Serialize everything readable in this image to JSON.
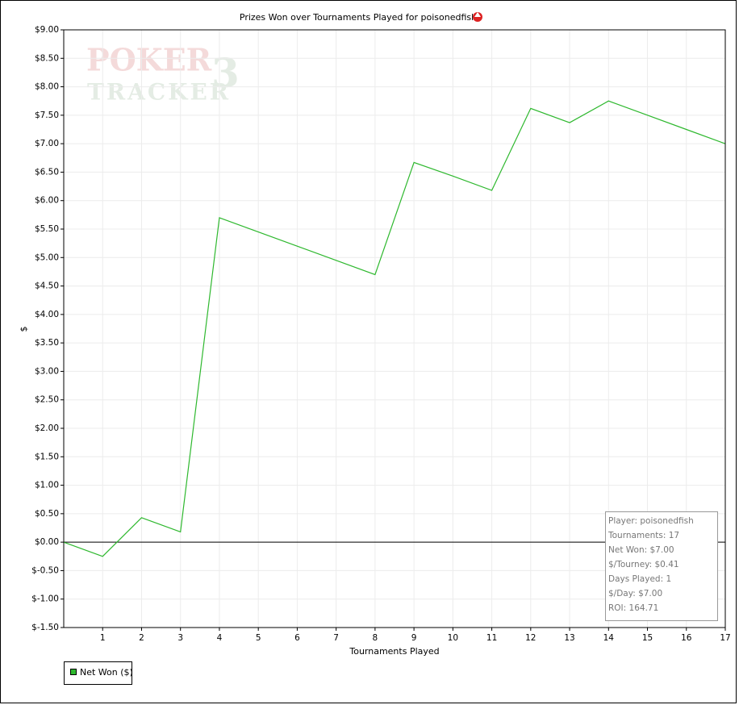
{
  "chart_data": {
    "type": "line",
    "title": "Prizes Won over Tournaments Played for poisonedfish",
    "watermark": [
      "POKER",
      "TRACKER",
      "3"
    ],
    "x_label": "Tournaments Played",
    "y_label": "$",
    "x": [
      0,
      1,
      2,
      3,
      4,
      5,
      6,
      7,
      8,
      9,
      10,
      11,
      12,
      13,
      14,
      15,
      16,
      17
    ],
    "series": [
      {
        "name": "Net Won ($)",
        "color": "#2eb82e",
        "values": [
          0.0,
          -0.25,
          0.43,
          0.18,
          5.7,
          5.45,
          5.2,
          4.95,
          4.7,
          6.67,
          6.43,
          6.18,
          7.62,
          7.37,
          7.75,
          7.5,
          7.25,
          7.0
        ]
      }
    ],
    "xlim": [
      0,
      17
    ],
    "xticks": [
      1,
      2,
      3,
      4,
      5,
      6,
      7,
      8,
      9,
      10,
      11,
      12,
      13,
      14,
      15,
      16,
      17
    ],
    "ylim": [
      -1.5,
      9
    ],
    "yticks": [
      {
        "value": 9,
        "label": "$9.00"
      },
      {
        "value": 8.5,
        "label": "$8.50"
      },
      {
        "value": 8,
        "label": "$8.00"
      },
      {
        "value": 7.5,
        "label": "$7.50"
      },
      {
        "value": 7,
        "label": "$7.00"
      },
      {
        "value": 6.5,
        "label": "$6.50"
      },
      {
        "value": 6,
        "label": "$6.00"
      },
      {
        "value": 5.5,
        "label": "$5.50"
      },
      {
        "value": 5,
        "label": "$5.00"
      },
      {
        "value": 4.5,
        "label": "$4.50"
      },
      {
        "value": 4,
        "label": "$4.00"
      },
      {
        "value": 3.5,
        "label": "$3.50"
      },
      {
        "value": 3,
        "label": "$3.00"
      },
      {
        "value": 2.5,
        "label": "$2.50"
      },
      {
        "value": 2,
        "label": "$2.00"
      },
      {
        "value": 1.5,
        "label": "$1.50"
      },
      {
        "value": 1,
        "label": "$1.00"
      },
      {
        "value": 0.5,
        "label": "$0.50"
      },
      {
        "value": 0,
        "label": "$0.00"
      },
      {
        "value": -0.5,
        "label": "$-0.50"
      },
      {
        "value": -1,
        "label": "$-1.00"
      },
      {
        "value": -1.5,
        "label": "$-1.50"
      }
    ],
    "grid": true,
    "stats": [
      "Player: poisonedfish",
      "Tournaments: 17",
      "Net Won: $7.00",
      "$/Tourney: $0.41",
      "Days Played: 1",
      "$/Day: $7.00",
      "ROI: 164.71"
    ]
  }
}
